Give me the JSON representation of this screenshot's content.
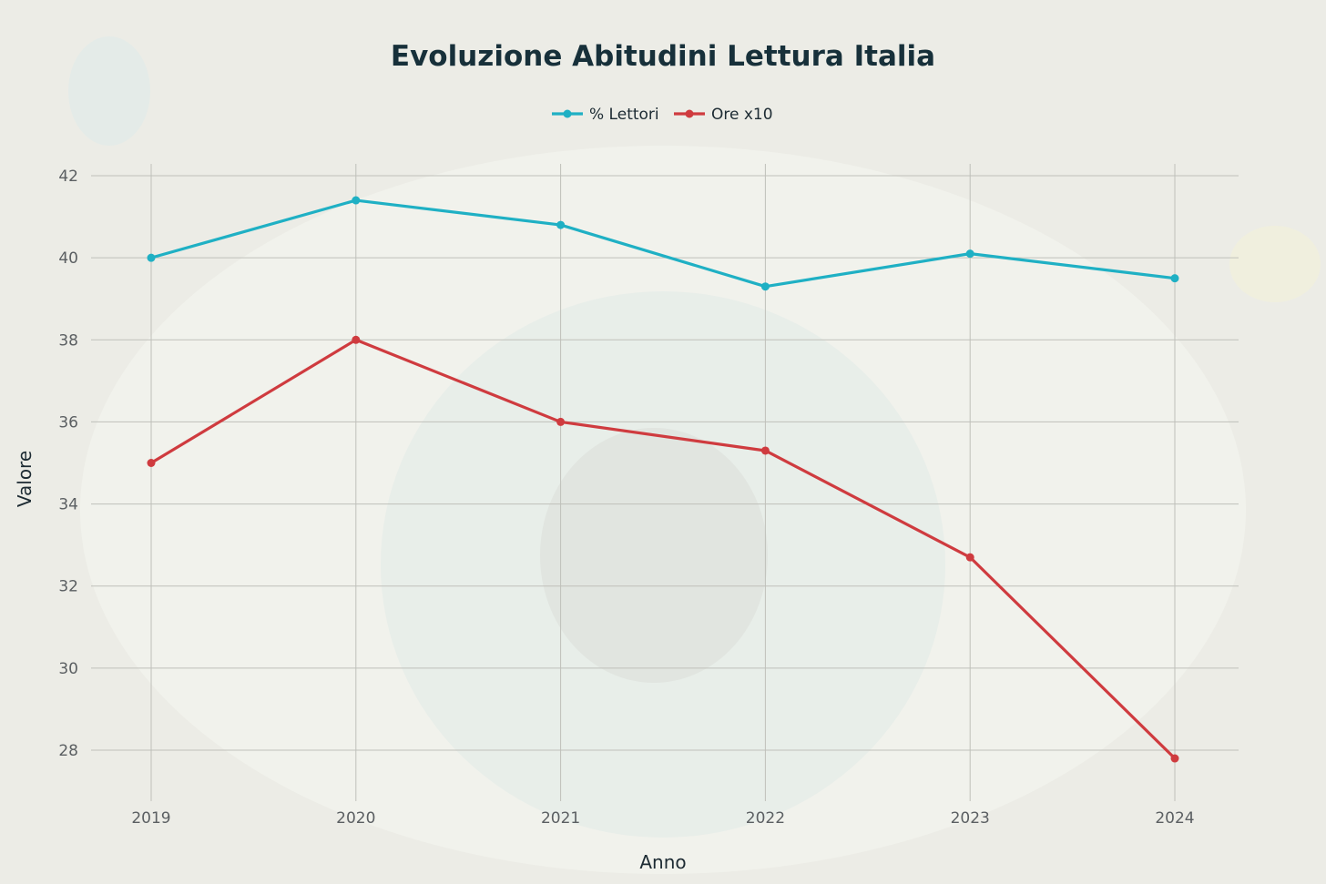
{
  "chart_data": {
    "type": "line",
    "title": "Evoluzione Abitudini Lettura Italia",
    "xlabel": "Anno",
    "ylabel": "Valore",
    "categories": [
      "2019",
      "2020",
      "2021",
      "2022",
      "2023",
      "2024"
    ],
    "ylim": [
      27.3,
      42.3
    ],
    "yticks": [
      28,
      30,
      32,
      34,
      36,
      38,
      40,
      42
    ],
    "grid": true,
    "legend_position": "top-center",
    "series": [
      {
        "name": "% Lettori",
        "color": "#1fb0c4",
        "values": [
          40.0,
          41.4,
          40.8,
          39.3,
          40.1,
          39.5
        ]
      },
      {
        "name": "Ore x10",
        "color": "#cf3b3f",
        "values": [
          35.0,
          38.0,
          36.0,
          35.3,
          32.7,
          27.8
        ]
      }
    ]
  }
}
